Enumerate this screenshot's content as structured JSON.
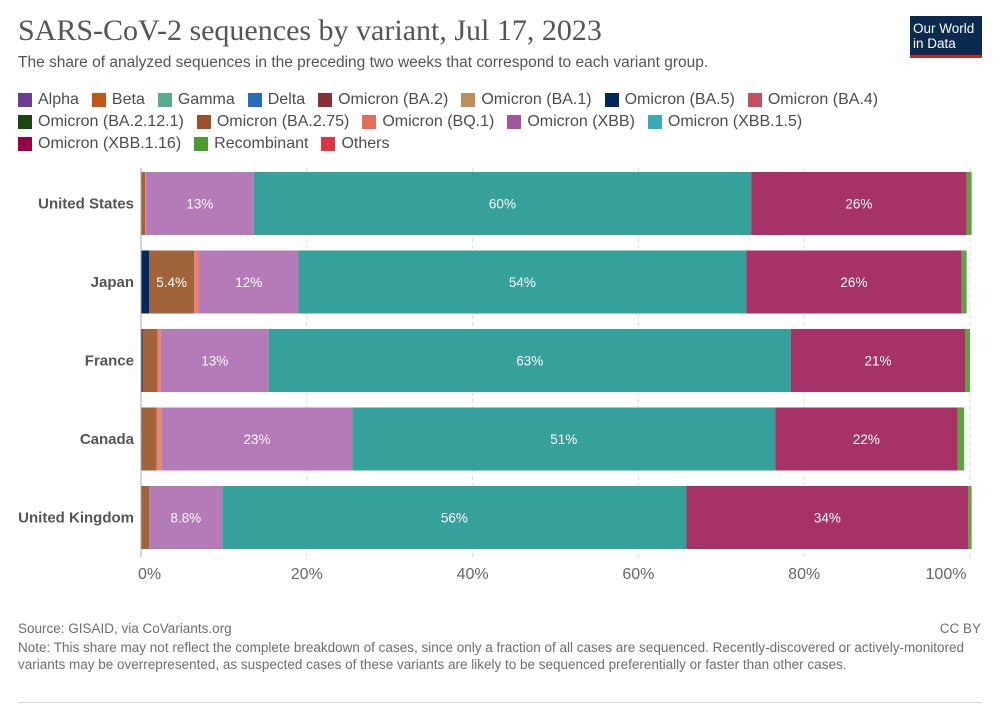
{
  "title": "SARS-CoV-2 sequences by variant, Jul 17, 2023",
  "subtitle": "The share of analyzed sequences in the preceding two weeks that correspond to each variant group.",
  "logo": {
    "line1": "Our World",
    "line2": "in Data"
  },
  "legend": [
    {
      "name": "Alpha",
      "color": "#6d3e91"
    },
    {
      "name": "Beta",
      "color": "#c05917"
    },
    {
      "name": "Gamma",
      "color": "#58ac8c"
    },
    {
      "name": "Delta",
      "color": "#286bbb"
    },
    {
      "name": "Omicron (BA.2)",
      "color": "#883039"
    },
    {
      "name": "Omicron (BA.1)",
      "color": "#bc8e5a"
    },
    {
      "name": "Omicron (BA.5)",
      "color": "#00295b"
    },
    {
      "name": "Omicron (BA.4)",
      "color": "#c15065"
    },
    {
      "name": "Omicron (BA.2.12.1)",
      "color": "#18470f"
    },
    {
      "name": "Omicron (BA.2.75)",
      "color": "#9a5129"
    },
    {
      "name": "Omicron (BQ.1)",
      "color": "#e56e5a"
    },
    {
      "name": "Omicron (XBB)",
      "color": "#a2559c"
    },
    {
      "name": "Omicron (XBB.1.5)",
      "color": "#38aaba"
    },
    {
      "name": "Omicron (XBB.1.16)",
      "color": "#970046"
    },
    {
      "name": "Recombinant",
      "color": "#4c9b31"
    },
    {
      "name": "Others",
      "color": "#dc3545"
    }
  ],
  "chart_data": {
    "type": "bar",
    "orientation": "horizontal",
    "stacked": true,
    "categories": [
      "United States",
      "Japan",
      "France",
      "Canada",
      "United Kingdom"
    ],
    "xlim": [
      0,
      100
    ],
    "x_ticks": [
      "0%",
      "20%",
      "40%",
      "60%",
      "80%",
      "100%"
    ],
    "grid": "vertical dashed",
    "segment_colors": {
      "Omicron (BA.5)": "#00295b",
      "Omicron (BA.2.75)": "#a0633a",
      "Omicron (BQ.1)": "#e88370",
      "Omicron (XBB)": "#b57bb9",
      "Omicron (XBB.1.5)": "#36a09a",
      "Omicron (XBB.1.16)": "#a63268",
      "Recombinant": "#5ea241"
    },
    "series": [
      {
        "name": "Omicron (BA.5)",
        "values": [
          0.0,
          1.0,
          0.2,
          0.1,
          0.0
        ]
      },
      {
        "name": "Omicron (BA.2.75)",
        "values": [
          0.5,
          5.4,
          1.8,
          1.8,
          1.0
        ]
      },
      {
        "name": "Omicron (BQ.1)",
        "values": [
          0.1,
          0.6,
          0.4,
          0.6,
          0.0
        ]
      },
      {
        "name": "Omicron (XBB)",
        "values": [
          13,
          12,
          13,
          23,
          8.8
        ]
      },
      {
        "name": "Omicron (XBB.1.5)",
        "values": [
          60,
          54,
          63,
          51,
          56
        ]
      },
      {
        "name": "Omicron (XBB.1.16)",
        "values": [
          26,
          26,
          21,
          22,
          34
        ]
      },
      {
        "name": "Recombinant",
        "values": [
          0.6,
          0.6,
          0.6,
          0.8,
          0.4
        ]
      }
    ],
    "data_labels": [
      {
        "series": "Omicron (BA.2.75)",
        "labels": [
          "",
          "5.4%",
          "",
          "",
          ""
        ]
      },
      {
        "series": "Omicron (XBB)",
        "labels": [
          "13%",
          "12%",
          "13%",
          "23%",
          "8.8%"
        ]
      },
      {
        "series": "Omicron (XBB.1.5)",
        "labels": [
          "60%",
          "54%",
          "63%",
          "51%",
          "56%"
        ]
      },
      {
        "series": "Omicron (XBB.1.16)",
        "labels": [
          "26%",
          "26%",
          "21%",
          "22%",
          "34%"
        ]
      }
    ]
  },
  "footer": {
    "source": "Source: GISAID, via CoVariants.org",
    "license": "CC BY",
    "note": "Note: This share may not reflect the complete breakdown of cases, since only a fraction of all cases are sequenced. Recently-discovered or actively-monitored variants may be overrepresented, as suspected cases of these variants are likely to be sequenced preferentially or faster than other cases."
  }
}
